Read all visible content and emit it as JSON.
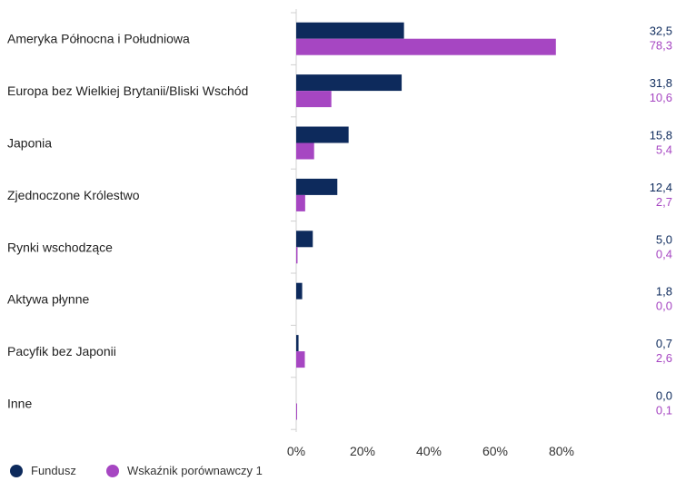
{
  "chart_data": {
    "type": "bar",
    "orientation": "horizontal",
    "title": "",
    "xlabel": "",
    "ylabel": "",
    "categories": [
      "Ameryka Północna i Południowa",
      "Europa bez Wielkiej Brytanii/Bliski Wschód",
      "Japonia",
      "Zjednoczone Królestwo",
      "Rynki wschodzące",
      "Aktywa płynne",
      "Pacyfik bez Japonii",
      "Inne"
    ],
    "series": [
      {
        "name": "Fundusz",
        "color": "#0d2a5c",
        "values": [
          32.5,
          31.8,
          15.8,
          12.4,
          5.0,
          1.8,
          0.7,
          0.0
        ],
        "labels": [
          "32,5",
          "31,8",
          "15,8",
          "12,4",
          "5,0",
          "1,8",
          "0,7",
          "0,0"
        ]
      },
      {
        "name": "Wskaźnik porównawczy 1",
        "color": "#a646c2",
        "values": [
          78.3,
          10.6,
          5.4,
          2.7,
          0.4,
          0.0,
          2.6,
          0.1
        ],
        "labels": [
          "78,3",
          "10,6",
          "5,4",
          "2,7",
          "0,4",
          "0,0",
          "2,6",
          "0,1"
        ]
      }
    ],
    "xlim": [
      0,
      100
    ],
    "xticks": [
      0,
      20,
      40,
      60,
      80
    ],
    "xtick_labels": [
      "0%",
      "20%",
      "40%",
      "60%",
      "80%"
    ],
    "grid": false,
    "legend_position": "bottom-left"
  }
}
